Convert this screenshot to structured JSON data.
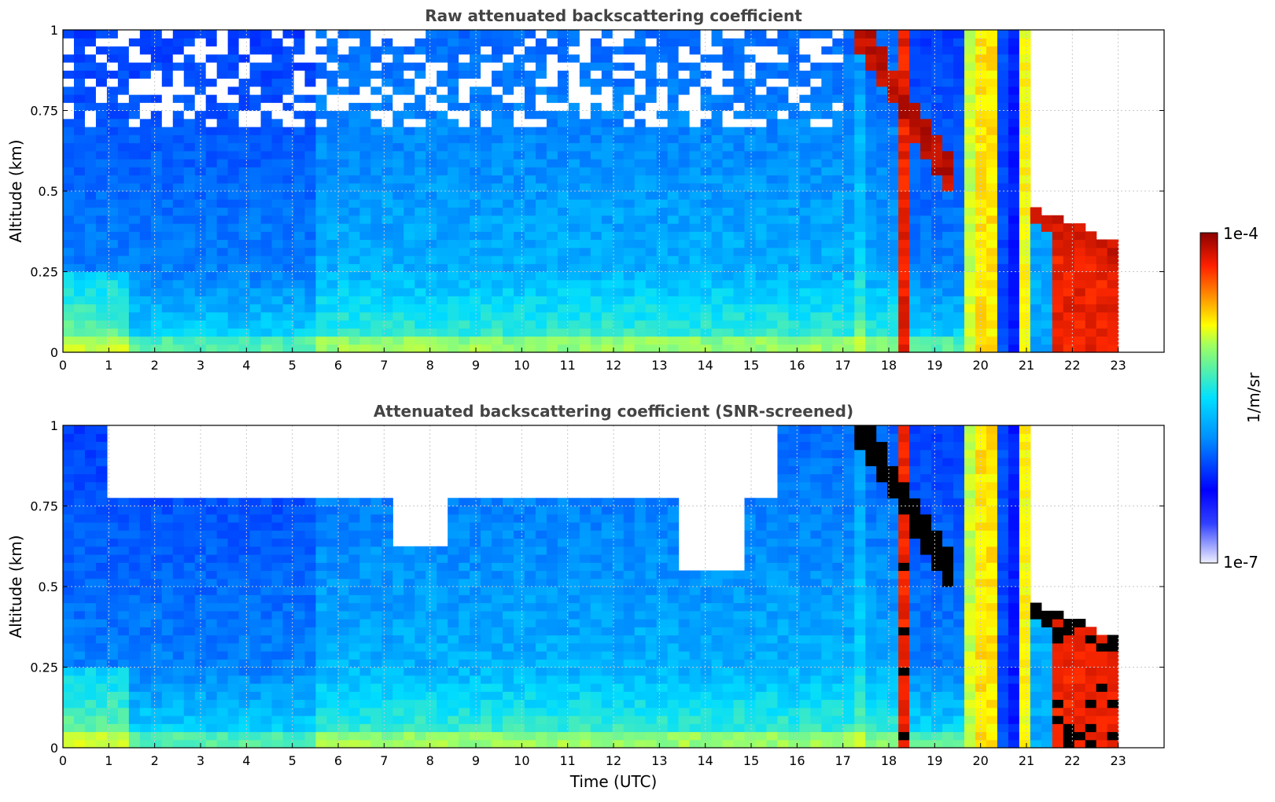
{
  "colormap": [
    "#ffffff",
    "#0000ff",
    "#00c8ff",
    "#ffff00",
    "#ff3000",
    "#8b0000"
  ],
  "colorbar": {
    "label": "1/m/sr",
    "max_label": "1e-4",
    "min_label": "1e-7",
    "scale": "log",
    "range": [
      1e-07,
      0.0001
    ]
  },
  "chart_data": [
    {
      "type": "heatmap",
      "title": "Raw attenuated backscattering coefficient",
      "xlabel": "",
      "ylabel": "Altitude (km)",
      "xlim": [
        0,
        24
      ],
      "ylim": [
        0,
        1
      ],
      "x_ticks": [
        "0",
        "1",
        "2",
        "3",
        "4",
        "5",
        "6",
        "7",
        "8",
        "9",
        "10",
        "11",
        "12",
        "13",
        "14",
        "15",
        "16",
        "17",
        "18",
        "19",
        "20",
        "21",
        "22",
        "23"
      ],
      "y_ticks": [
        "0",
        "0.25",
        "0.5",
        "0.75",
        "1"
      ],
      "grid": true,
      "data_range_hours": [
        0,
        23
      ]
    },
    {
      "type": "heatmap",
      "title": "Attenuated backscattering coefficient (SNR-screened)",
      "xlabel": "Time (UTC)",
      "ylabel": "Altitude (km)",
      "xlim": [
        0,
        24
      ],
      "ylim": [
        0,
        1
      ],
      "x_ticks": [
        "0",
        "1",
        "2",
        "3",
        "4",
        "5",
        "6",
        "7",
        "8",
        "9",
        "10",
        "11",
        "12",
        "13",
        "14",
        "15",
        "16",
        "17",
        "18",
        "19",
        "20",
        "21",
        "22",
        "23"
      ],
      "y_ticks": [
        "0",
        "0.25",
        "0.5",
        "0.75",
        "1"
      ],
      "grid": true,
      "data_range_hours": [
        0,
        23
      ]
    }
  ]
}
